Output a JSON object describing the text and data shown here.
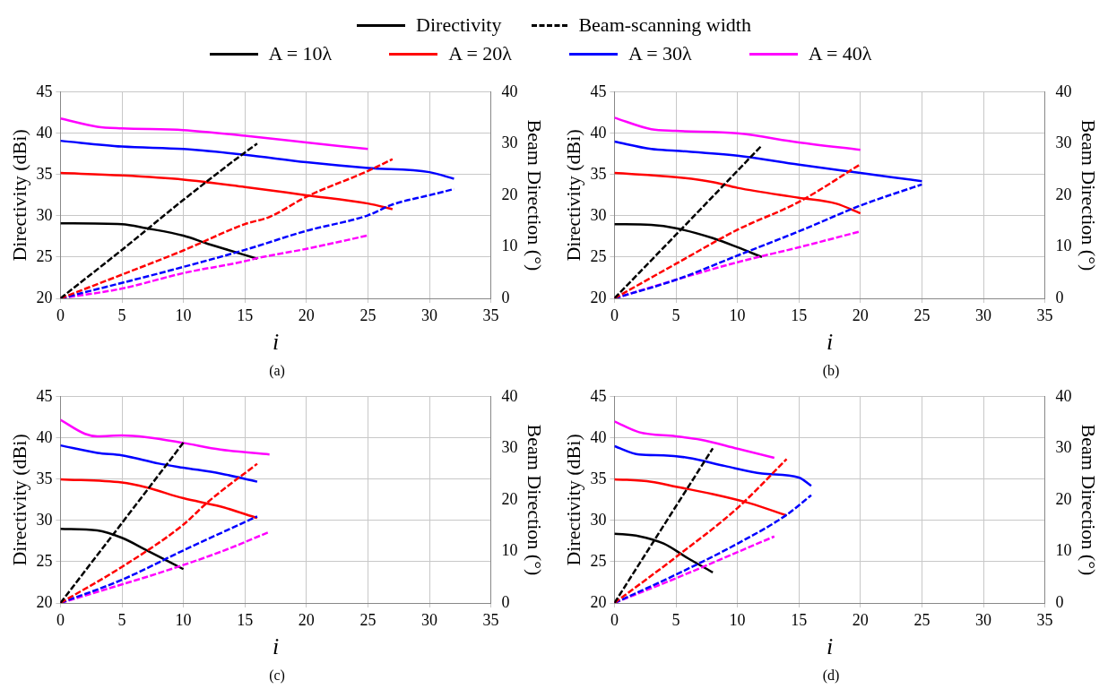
{
  "chart_data": [
    {
      "type": "line",
      "title": "(a)",
      "xlabel": "i",
      "ylabel": "Directivity (dBi)",
      "y2label": "Beam Direction (°)",
      "xlim": [
        0,
        35
      ],
      "xticks": [
        0,
        5,
        10,
        15,
        20,
        25,
        30,
        35
      ],
      "ylim": [
        20,
        45
      ],
      "yticks": [
        20,
        25,
        30,
        35,
        40,
        45
      ],
      "y2lim": [
        0,
        40
      ],
      "y2ticks": [
        0,
        10,
        20,
        30,
        40
      ],
      "grid": true,
      "legend": "top",
      "marker": "none",
      "annotations": [
        "Directivity",
        "Beam-scanning width"
      ],
      "series": [
        {
          "name": "A = 10λ",
          "color": "#000000",
          "line_style": "solid",
          "x": [
            0,
            5,
            7,
            10,
            12,
            14,
            16
          ],
          "values": [
            29.1,
            29.0,
            28.5,
            27.6,
            26.6,
            25.7,
            24.8
          ]
        },
        {
          "name": "A = 20λ",
          "color": "#ff0000",
          "line_style": "solid",
          "x": [
            0,
            5,
            10,
            15,
            20,
            25,
            27
          ],
          "values": [
            35.2,
            34.9,
            34.4,
            33.5,
            32.5,
            31.5,
            30.8
          ]
        },
        {
          "name": "A = 30λ",
          "color": "#0000ff",
          "line_style": "solid",
          "x": [
            0,
            5,
            10,
            15,
            20,
            25,
            30,
            32
          ],
          "values": [
            39.1,
            38.4,
            38.1,
            37.4,
            36.5,
            35.8,
            35.3,
            34.5
          ]
        },
        {
          "name": "A = 40λ",
          "color": "#ff00ff",
          "line_style": "solid",
          "x": [
            0,
            3,
            5,
            10,
            15,
            20,
            25
          ],
          "values": [
            41.8,
            40.8,
            40.6,
            40.4,
            39.7,
            38.9,
            38.1
          ]
        },
        {
          "color": "#000000",
          "line_style": "dashed",
          "axis": "y2",
          "x": [
            0,
            5,
            10,
            15,
            16
          ],
          "values": [
            0,
            9.4,
            19.1,
            28.3,
            30
          ]
        },
        {
          "color": "#ff0000",
          "line_style": "dashed",
          "axis": "y2",
          "x": [
            0,
            5,
            10,
            15,
            17,
            20,
            25,
            27
          ],
          "values": [
            0,
            4.6,
            9.3,
            14.4,
            15.8,
            19.7,
            24.7,
            27
          ]
        },
        {
          "color": "#0000ff",
          "line_style": "dashed",
          "axis": "y2",
          "x": [
            0,
            5,
            10,
            15,
            20,
            25,
            27,
            30,
            32
          ],
          "values": [
            0,
            3.0,
            6.1,
            9.4,
            13.1,
            16.1,
            18.2,
            20,
            21.2
          ]
        },
        {
          "color": "#ff00ff",
          "line_style": "dashed",
          "axis": "y2",
          "x": [
            0,
            5,
            10,
            15,
            16,
            20,
            25
          ],
          "values": [
            0,
            1.9,
            4.9,
            7.2,
            7.8,
            9.6,
            12.2
          ]
        }
      ]
    },
    {
      "type": "line",
      "title": "(b)",
      "xlabel": "i",
      "ylabel": "Directivity (dBi)",
      "y2label": "Beam Direction (°)",
      "xlim": [
        0,
        35
      ],
      "xticks": [
        0,
        5,
        10,
        15,
        20,
        25,
        30,
        35
      ],
      "ylim": [
        20,
        45
      ],
      "yticks": [
        20,
        25,
        30,
        35,
        40,
        45
      ],
      "y2lim": [
        0,
        40
      ],
      "y2ticks": [
        0,
        10,
        20,
        30,
        40
      ],
      "grid": true,
      "marker": "none",
      "series": [
        {
          "color": "#000000",
          "line_style": "solid",
          "x": [
            0,
            3,
            5,
            8,
            10,
            12
          ],
          "values": [
            29.0,
            28.9,
            28.5,
            27.3,
            26.2,
            25.0
          ]
        },
        {
          "color": "#ff0000",
          "line_style": "solid",
          "x": [
            0,
            5,
            8,
            10,
            15,
            18,
            20
          ],
          "values": [
            35.2,
            34.7,
            34.1,
            33.4,
            32.2,
            31.5,
            30.3
          ]
        },
        {
          "color": "#0000ff",
          "line_style": "solid",
          "x": [
            0,
            3,
            5,
            10,
            15,
            20,
            25
          ],
          "values": [
            39.0,
            38.1,
            37.9,
            37.3,
            36.2,
            35.2,
            34.2
          ]
        },
        {
          "color": "#ff00ff",
          "line_style": "solid",
          "x": [
            0,
            3,
            5,
            10,
            15,
            20
          ],
          "values": [
            41.9,
            40.5,
            40.3,
            40.0,
            38.9,
            38.0
          ]
        },
        {
          "color": "#000000",
          "line_style": "dashed",
          "axis": "y2",
          "x": [
            0,
            6,
            12
          ],
          "values": [
            0,
            14.8,
            29.7
          ]
        },
        {
          "color": "#ff0000",
          "line_style": "dashed",
          "axis": "y2",
          "x": [
            0,
            5,
            10,
            15,
            20
          ],
          "values": [
            0,
            6.7,
            13.3,
            18.7,
            26.0
          ]
        },
        {
          "color": "#0000ff",
          "line_style": "dashed",
          "axis": "y2",
          "x": [
            0,
            5,
            10,
            15,
            20,
            25
          ],
          "values": [
            0,
            3.6,
            8.3,
            13.0,
            18.0,
            22.1
          ]
        },
        {
          "color": "#ff00ff",
          "line_style": "dashed",
          "axis": "y2",
          "x": [
            0,
            5,
            10,
            15,
            20
          ],
          "values": [
            0,
            3.6,
            7.0,
            9.9,
            13.0
          ]
        }
      ]
    },
    {
      "type": "line",
      "title": "(c)",
      "xlabel": "i",
      "ylabel": "Directivity (dBi)",
      "y2label": "Beam Direction (°)",
      "xlim": [
        0,
        35
      ],
      "xticks": [
        0,
        5,
        10,
        15,
        20,
        25,
        30,
        35
      ],
      "ylim": [
        20,
        45
      ],
      "yticks": [
        20,
        25,
        30,
        35,
        40,
        45
      ],
      "y2lim": [
        0,
        40
      ],
      "y2ticks": [
        0,
        10,
        20,
        30,
        40
      ],
      "grid": true,
      "marker": "none",
      "series": [
        {
          "color": "#000000",
          "line_style": "solid",
          "x": [
            0,
            3,
            5,
            7,
            10
          ],
          "values": [
            29.0,
            28.8,
            27.9,
            26.4,
            24.1
          ]
        },
        {
          "color": "#ff0000",
          "line_style": "solid",
          "x": [
            0,
            5,
            7,
            10,
            13,
            16
          ],
          "values": [
            35.0,
            34.6,
            34.0,
            32.7,
            31.7,
            30.3
          ]
        },
        {
          "color": "#0000ff",
          "line_style": "solid",
          "x": [
            0,
            3,
            5,
            8,
            10,
            13,
            16
          ],
          "values": [
            39.1,
            38.2,
            37.9,
            36.9,
            36.4,
            35.7,
            34.7
          ]
        },
        {
          "color": "#ff00ff",
          "line_style": "solid",
          "x": [
            0,
            2,
            3,
            5,
            7,
            10,
            13,
            17
          ],
          "values": [
            42.2,
            40.5,
            40.2,
            40.3,
            40.1,
            39.4,
            38.6,
            38.0
          ]
        },
        {
          "color": "#000000",
          "line_style": "dashed",
          "axis": "y2",
          "x": [
            0,
            5,
            10
          ],
          "values": [
            0,
            15.5,
            31.1
          ]
        },
        {
          "color": "#ff0000",
          "line_style": "dashed",
          "axis": "y2",
          "x": [
            0,
            5,
            10,
            12,
            16
          ],
          "values": [
            0,
            7.0,
            15.2,
            19.6,
            27.0
          ]
        },
        {
          "color": "#0000ff",
          "line_style": "dashed",
          "axis": "y2",
          "x": [
            0,
            5,
            10,
            16
          ],
          "values": [
            0,
            4.5,
            10.2,
            16.8
          ]
        },
        {
          "color": "#ff00ff",
          "line_style": "dashed",
          "axis": "y2",
          "x": [
            0,
            5,
            8,
            13,
            17
          ],
          "values": [
            0,
            3.6,
            5.8,
            9.9,
            13.8
          ]
        }
      ]
    },
    {
      "type": "line",
      "title": "(d)",
      "xlabel": "i",
      "ylabel": "Directivity (dBi)",
      "y2label": "Beam Direction (°)",
      "xlim": [
        0,
        35
      ],
      "xticks": [
        0,
        5,
        10,
        15,
        20,
        25,
        30,
        35
      ],
      "ylim": [
        20,
        45
      ],
      "yticks": [
        20,
        25,
        30,
        35,
        40,
        45
      ],
      "y2lim": [
        0,
        40
      ],
      "y2ticks": [
        0,
        10,
        20,
        30,
        40
      ],
      "grid": true,
      "marker": "none",
      "series": [
        {
          "color": "#000000",
          "line_style": "solid",
          "x": [
            0,
            2,
            4,
            6,
            8
          ],
          "values": [
            28.4,
            28.1,
            27.2,
            25.4,
            23.7
          ]
        },
        {
          "color": "#ff0000",
          "line_style": "solid",
          "x": [
            0,
            3,
            5,
            8,
            11,
            14
          ],
          "values": [
            35.0,
            34.7,
            34.1,
            33.2,
            32.1,
            30.6
          ]
        },
        {
          "color": "#0000ff",
          "line_style": "solid",
          "x": [
            0,
            2,
            4,
            6,
            9,
            12,
            15,
            16
          ],
          "values": [
            39.0,
            38.0,
            37.9,
            37.6,
            36.6,
            35.7,
            35.2,
            34.2
          ]
        },
        {
          "color": "#ff00ff",
          "line_style": "solid",
          "x": [
            0,
            2,
            5,
            7,
            10,
            13
          ],
          "values": [
            42.0,
            40.7,
            40.2,
            39.8,
            38.7,
            37.6
          ]
        },
        {
          "color": "#000000",
          "line_style": "dashed",
          "axis": "y2",
          "x": [
            0,
            4,
            8
          ],
          "values": [
            0,
            15.0,
            30.0
          ]
        },
        {
          "color": "#ff0000",
          "line_style": "dashed",
          "axis": "y2",
          "x": [
            0,
            5,
            10,
            14
          ],
          "values": [
            0,
            8.9,
            18.4,
            27.9
          ]
        },
        {
          "color": "#0000ff",
          "line_style": "dashed",
          "axis": "y2",
          "x": [
            0,
            5,
            10,
            14,
            16
          ],
          "values": [
            0,
            5.5,
            11.5,
            17.1,
            20.9
          ]
        },
        {
          "color": "#ff00ff",
          "line_style": "dashed",
          "axis": "y2",
          "x": [
            0,
            5,
            13
          ],
          "values": [
            0,
            4.8,
            12.9
          ]
        }
      ]
    }
  ]
}
